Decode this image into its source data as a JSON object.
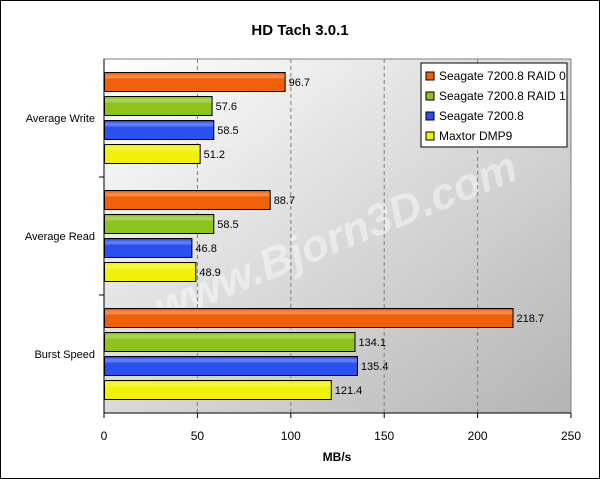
{
  "chart_data": {
    "type": "bar",
    "orientation": "horizontal",
    "title": "HD Tach 3.0.1",
    "xlabel": "MB/s",
    "ylabel": "",
    "xlim": [
      0,
      250
    ],
    "ticks": [
      "0",
      "50",
      "100",
      "150",
      "200",
      "250"
    ],
    "grid": true,
    "legend_position": "top-right",
    "watermark": "www.Bjorn3D.com",
    "categories": [
      "Average Write",
      "Average Read",
      "Burst Speed"
    ],
    "series": [
      {
        "name": "Seagate 7200.8 RAID 0",
        "color": "#f0600a",
        "values": [
          96.7,
          88.7,
          218.7
        ]
      },
      {
        "name": "Seagate 7200.8 RAID 1",
        "color": "#8dc21f",
        "values": [
          57.6,
          58.5,
          134.1
        ]
      },
      {
        "name": "Seagate 7200.8",
        "color": "#2b50f0",
        "values": [
          58.5,
          46.8,
          135.4
        ]
      },
      {
        "name": "Maxtor DMP9",
        "color": "#f0f00a",
        "values": [
          51.2,
          48.9,
          121.4
        ]
      }
    ]
  }
}
